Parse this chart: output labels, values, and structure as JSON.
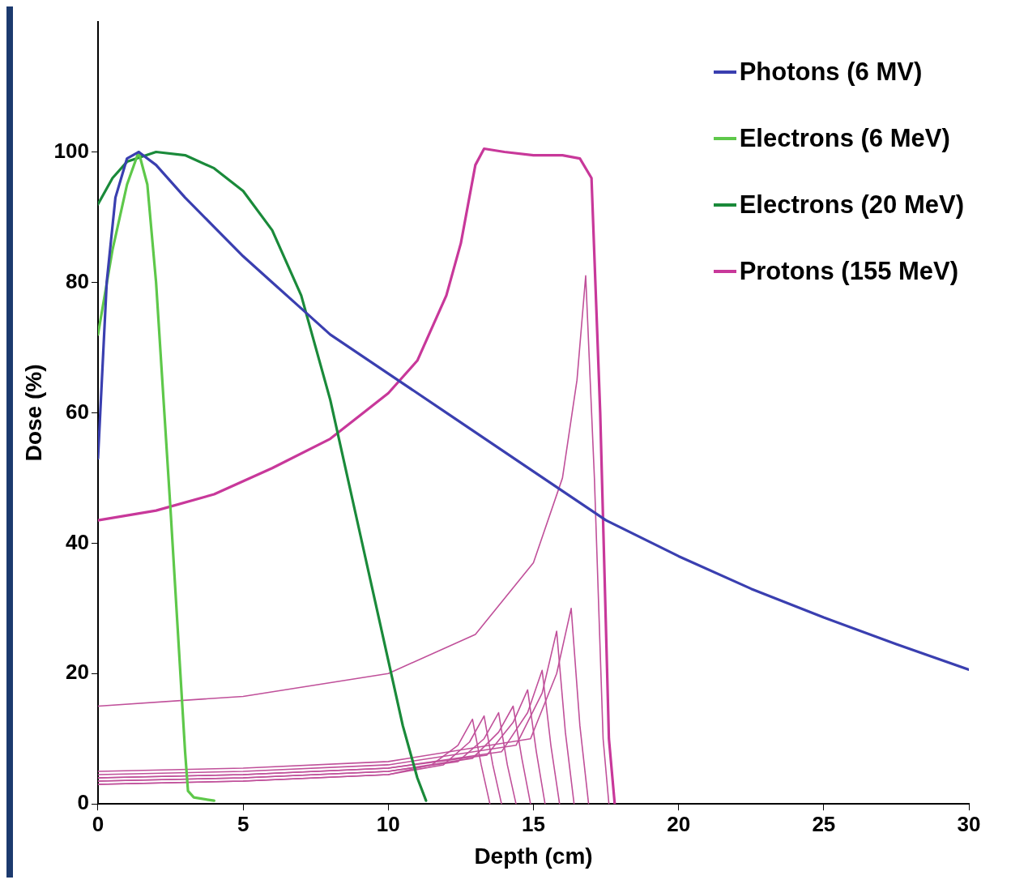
{
  "chart_data": {
    "type": "line",
    "xlabel": "Depth (cm)",
    "ylabel": "Dose (%)",
    "xlim": [
      0,
      30
    ],
    "xticks": [
      0,
      5,
      10,
      15,
      20,
      25,
      30
    ],
    "ylim": [
      0,
      120
    ],
    "yticks": [
      0,
      20,
      40,
      60,
      80,
      100
    ],
    "grid": false,
    "legend": "top right",
    "marker": "none",
    "line_style": "solid",
    "series": [
      {
        "name": "Photons (6 MV)",
        "color": "#3a3fb0",
        "x": [
          0,
          0.3,
          0.6,
          1,
          1.4,
          2,
          3,
          4,
          5,
          6,
          7,
          8,
          10,
          12,
          15,
          17.5,
          20,
          22.5,
          25,
          27.5,
          30
        ],
        "values": [
          53,
          80,
          93,
          99,
          100,
          98,
          93,
          88.5,
          84,
          80,
          76,
          72,
          66,
          60,
          51,
          43.5,
          38,
          33,
          28.6,
          24.5,
          20.6
        ]
      },
      {
        "name": "Electrons (6 MeV)",
        "color": "#5ec84a",
        "x": [
          0,
          0.5,
          1,
          1.4,
          1.7,
          2,
          2.5,
          3,
          3.1,
          3.3,
          4
        ],
        "values": [
          72,
          85,
          95,
          100,
          95,
          80,
          45,
          8,
          2,
          1,
          0.5
        ]
      },
      {
        "name": "Electrons (20 MeV)",
        "color": "#1a8a3a",
        "x": [
          0,
          0.5,
          1,
          2,
          3,
          4,
          5,
          6,
          7,
          8,
          9,
          10,
          10.5,
          11,
          11.3
        ],
        "values": [
          92,
          96,
          98.5,
          100,
          99.5,
          97.5,
          94,
          88,
          78,
          62,
          42,
          22,
          12,
          4,
          0.5
        ]
      },
      {
        "name": "Protons (155 MeV)",
        "color": "#c8389a",
        "x": [
          0,
          2,
          4,
          6,
          8,
          10,
          11,
          12,
          12.5,
          13,
          13.3,
          14,
          15,
          16,
          16.6,
          17,
          17.3,
          17.6,
          17.8
        ],
        "values": [
          43.5,
          45,
          47.5,
          51.5,
          56,
          63,
          68,
          78,
          86,
          98,
          100.5,
          100,
          99.5,
          99.5,
          99,
          96,
          60,
          10,
          0
        ]
      },
      {
        "color": "#c0509a",
        "x": [
          0,
          5,
          10,
          13,
          15,
          16,
          16.5,
          16.8,
          17.1,
          17.4,
          17.6
        ],
        "values": [
          15,
          16.5,
          20,
          26,
          37,
          50,
          65,
          81,
          50,
          10,
          0
        ]
      },
      {
        "color": "#c0509a",
        "x": [
          0,
          5,
          10,
          11.5,
          12.4,
          12.9,
          13.2,
          13.5
        ],
        "values": [
          3,
          3.5,
          4.5,
          6,
          9,
          13,
          6,
          0
        ]
      },
      {
        "color": "#c0509a",
        "x": [
          0,
          5,
          10,
          11.9,
          12.8,
          13.3,
          13.6,
          13.9
        ],
        "values": [
          3,
          3.5,
          4.5,
          6,
          9.5,
          13.5,
          6,
          0
        ]
      },
      {
        "color": "#c0509a",
        "x": [
          0,
          5,
          10,
          12.4,
          13.3,
          13.8,
          14.1,
          14.4
        ],
        "values": [
          3.5,
          4,
          5,
          6.5,
          10,
          14,
          6,
          0
        ]
      },
      {
        "color": "#c0509a",
        "x": [
          0,
          5,
          10,
          12.9,
          13.8,
          14.3,
          14.6,
          14.9
        ],
        "values": [
          3.5,
          4,
          5,
          7,
          11,
          15,
          7,
          0
        ]
      },
      {
        "color": "#c0509a",
        "x": [
          0,
          5,
          10,
          13.4,
          14.3,
          14.8,
          15.1,
          15.4
        ],
        "values": [
          4,
          4.5,
          5.5,
          7.5,
          12.5,
          17.5,
          8,
          0
        ]
      },
      {
        "color": "#c0509a",
        "x": [
          0,
          5,
          10,
          13.9,
          14.8,
          15.3,
          15.6,
          15.9
        ],
        "values": [
          4,
          4.5,
          5.5,
          8,
          14,
          20.5,
          9,
          0
        ]
      },
      {
        "color": "#c0509a",
        "x": [
          0,
          5,
          10,
          14.4,
          15.3,
          15.8,
          16.1,
          16.4
        ],
        "values": [
          4.5,
          5,
          6,
          9,
          17,
          26.5,
          11,
          0
        ]
      },
      {
        "color": "#c0509a",
        "x": [
          0,
          5,
          10,
          14.9,
          15.8,
          16.3,
          16.6,
          16.9
        ],
        "values": [
          5,
          5.5,
          6.5,
          10,
          20,
          30,
          12,
          0
        ]
      }
    ]
  }
}
